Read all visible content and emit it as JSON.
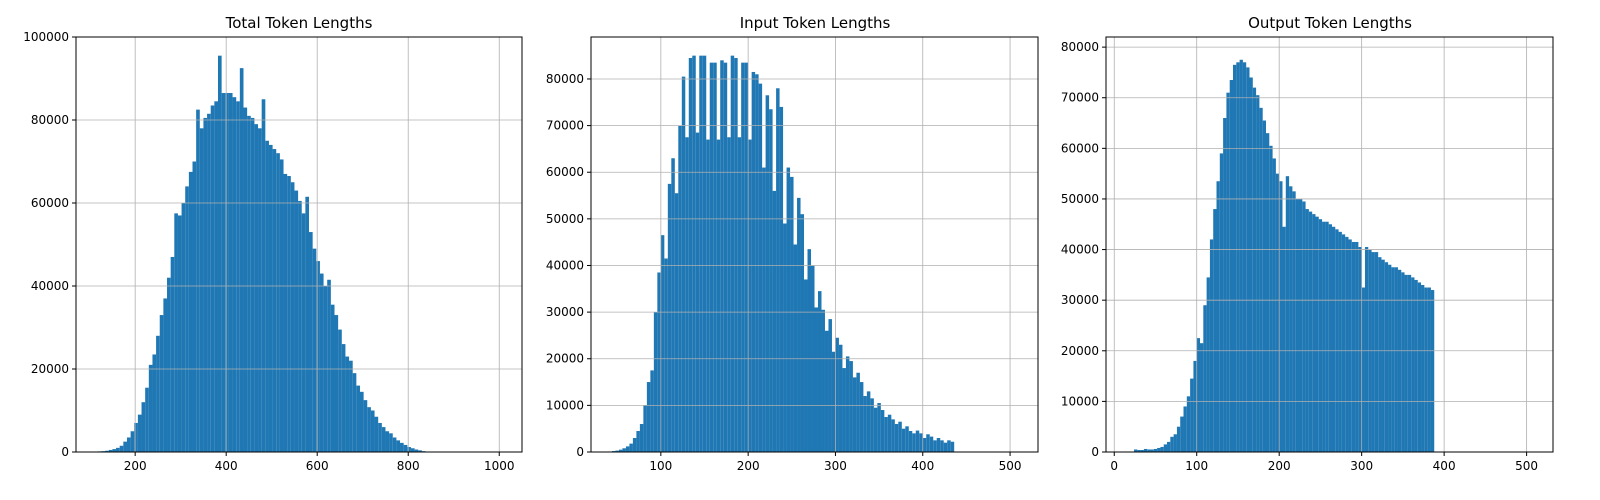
{
  "figure": {
    "bar_color": "#1f77b4",
    "grid": true
  },
  "chart_data": [
    {
      "type": "bar",
      "title": "Total Token Lengths",
      "xlabel": "",
      "ylabel": "",
      "grid": true,
      "color": "#1f77b4",
      "xlim": [
        70,
        1050
      ],
      "ylim": [
        0,
        100000
      ],
      "xticks": [
        200,
        400,
        600,
        800,
        1000
      ],
      "xtick_labels": [
        "200",
        "400",
        "600",
        "800",
        "1000"
      ],
      "yticks": [
        0,
        20000,
        40000,
        60000,
        80000,
        100000
      ],
      "ytick_labels": [
        "0",
        "20000",
        "40000",
        "60000",
        "80000",
        "100000"
      ],
      "bin_edges_start": 110,
      "bin_width": 8,
      "values": [
        100,
        150,
        200,
        300,
        500,
        700,
        1000,
        1500,
        2500,
        3500,
        5000,
        7000,
        9000,
        12000,
        15500,
        21000,
        23500,
        28000,
        33000,
        37000,
        42000,
        47000,
        57500,
        57000,
        60000,
        64000,
        67500,
        70000,
        82500,
        78000,
        80500,
        81500,
        83500,
        84500,
        95500,
        86500,
        86500,
        86500,
        85500,
        84500,
        92500,
        83000,
        81000,
        80500,
        79000,
        78000,
        85000,
        75000,
        74000,
        73000,
        72000,
        70500,
        67000,
        66500,
        65000,
        63000,
        60500,
        57500,
        61500,
        53000,
        49000,
        46000,
        43000,
        40000,
        41500,
        35500,
        33000,
        29500,
        26000,
        23000,
        22000,
        19000,
        16000,
        14500,
        12500,
        10800,
        10000,
        8500,
        7000,
        6000,
        5000,
        4500,
        3500,
        2800,
        2200,
        1700,
        1200,
        900,
        600,
        400,
        200,
        100
      ]
    },
    {
      "type": "bar",
      "title": "Input Token Lengths",
      "xlabel": "",
      "ylabel": "",
      "grid": true,
      "color": "#1f77b4",
      "xlim": [
        20,
        532
      ],
      "ylim": [
        0,
        89000
      ],
      "xticks": [
        100,
        200,
        300,
        400,
        500
      ],
      "xtick_labels": [
        "100",
        "200",
        "300",
        "400",
        "500"
      ],
      "yticks": [
        0,
        10000,
        20000,
        30000,
        40000,
        50000,
        60000,
        70000,
        80000
      ],
      "ytick_labels": [
        "0",
        "10000",
        "20000",
        "30000",
        "40000",
        "50000",
        "60000",
        "70000",
        "80000"
      ],
      "bin_edges_start": 44,
      "bin_width": 4,
      "values": [
        200,
        300,
        500,
        800,
        1200,
        1800,
        3000,
        4500,
        6000,
        10000,
        15000,
        17500,
        30000,
        38500,
        46500,
        41500,
        57500,
        63000,
        55500,
        70000,
        80500,
        67500,
        84500,
        85000,
        68500,
        85000,
        85000,
        67000,
        83500,
        83500,
        67000,
        84000,
        83500,
        67500,
        85000,
        84500,
        67500,
        83500,
        83500,
        67000,
        81500,
        81000,
        79000,
        61000,
        76500,
        73500,
        56000,
        78000,
        74000,
        49000,
        61000,
        59000,
        44500,
        54500,
        51000,
        37000,
        43500,
        40000,
        31000,
        34500,
        30500,
        26000,
        28500,
        21500,
        24500,
        23000,
        18000,
        20500,
        19500,
        16000,
        17000,
        15000,
        12000,
        13000,
        11500,
        9500,
        10500,
        9000,
        7500,
        8000,
        7000,
        6000,
        6500,
        5000,
        5500,
        4500,
        4000,
        4600,
        4000,
        3000,
        3800,
        3300,
        2500,
        3000,
        2500,
        2000,
        2500,
        2200
      ]
    },
    {
      "type": "bar",
      "title": "Output Token Lengths",
      "xlabel": "",
      "ylabel": "",
      "grid": true,
      "color": "#1f77b4",
      "xlim": [
        -10,
        532
      ],
      "ylim": [
        0,
        82000
      ],
      "xticks": [
        0,
        100,
        200,
        300,
        400,
        500
      ],
      "xtick_labels": [
        "0",
        "100",
        "200",
        "300",
        "400",
        "500"
      ],
      "yticks": [
        0,
        10000,
        20000,
        30000,
        40000,
        50000,
        60000,
        70000,
        80000
      ],
      "ytick_labels": [
        "0",
        "10000",
        "20000",
        "30000",
        "40000",
        "50000",
        "60000",
        "70000",
        "80000"
      ],
      "bin_edges_start": 24,
      "bin_width": 4,
      "values": [
        500,
        400,
        400,
        600,
        500,
        500,
        600,
        800,
        1000,
        1500,
        2000,
        3000,
        3500,
        5000,
        7000,
        9000,
        11000,
        14500,
        18000,
        22500,
        21500,
        29000,
        34500,
        42000,
        48000,
        53500,
        59000,
        66000,
        71000,
        73500,
        76500,
        77000,
        77500,
        77000,
        76000,
        74000,
        72000,
        70500,
        68000,
        65500,
        63000,
        60500,
        58000,
        55000,
        53500,
        44500,
        54500,
        52500,
        51500,
        50000,
        50000,
        49500,
        48000,
        47500,
        47000,
        46500,
        46000,
        45500,
        45500,
        45000,
        44500,
        44000,
        43500,
        43000,
        42500,
        42000,
        41500,
        41500,
        40500,
        32500,
        40500,
        40000,
        39500,
        39500,
        38500,
        38000,
        37500,
        37000,
        36500,
        36500,
        36000,
        35500,
        35000,
        35000,
        34500,
        34000,
        33500,
        33000,
        32500,
        32500,
        32000
      ]
    }
  ]
}
